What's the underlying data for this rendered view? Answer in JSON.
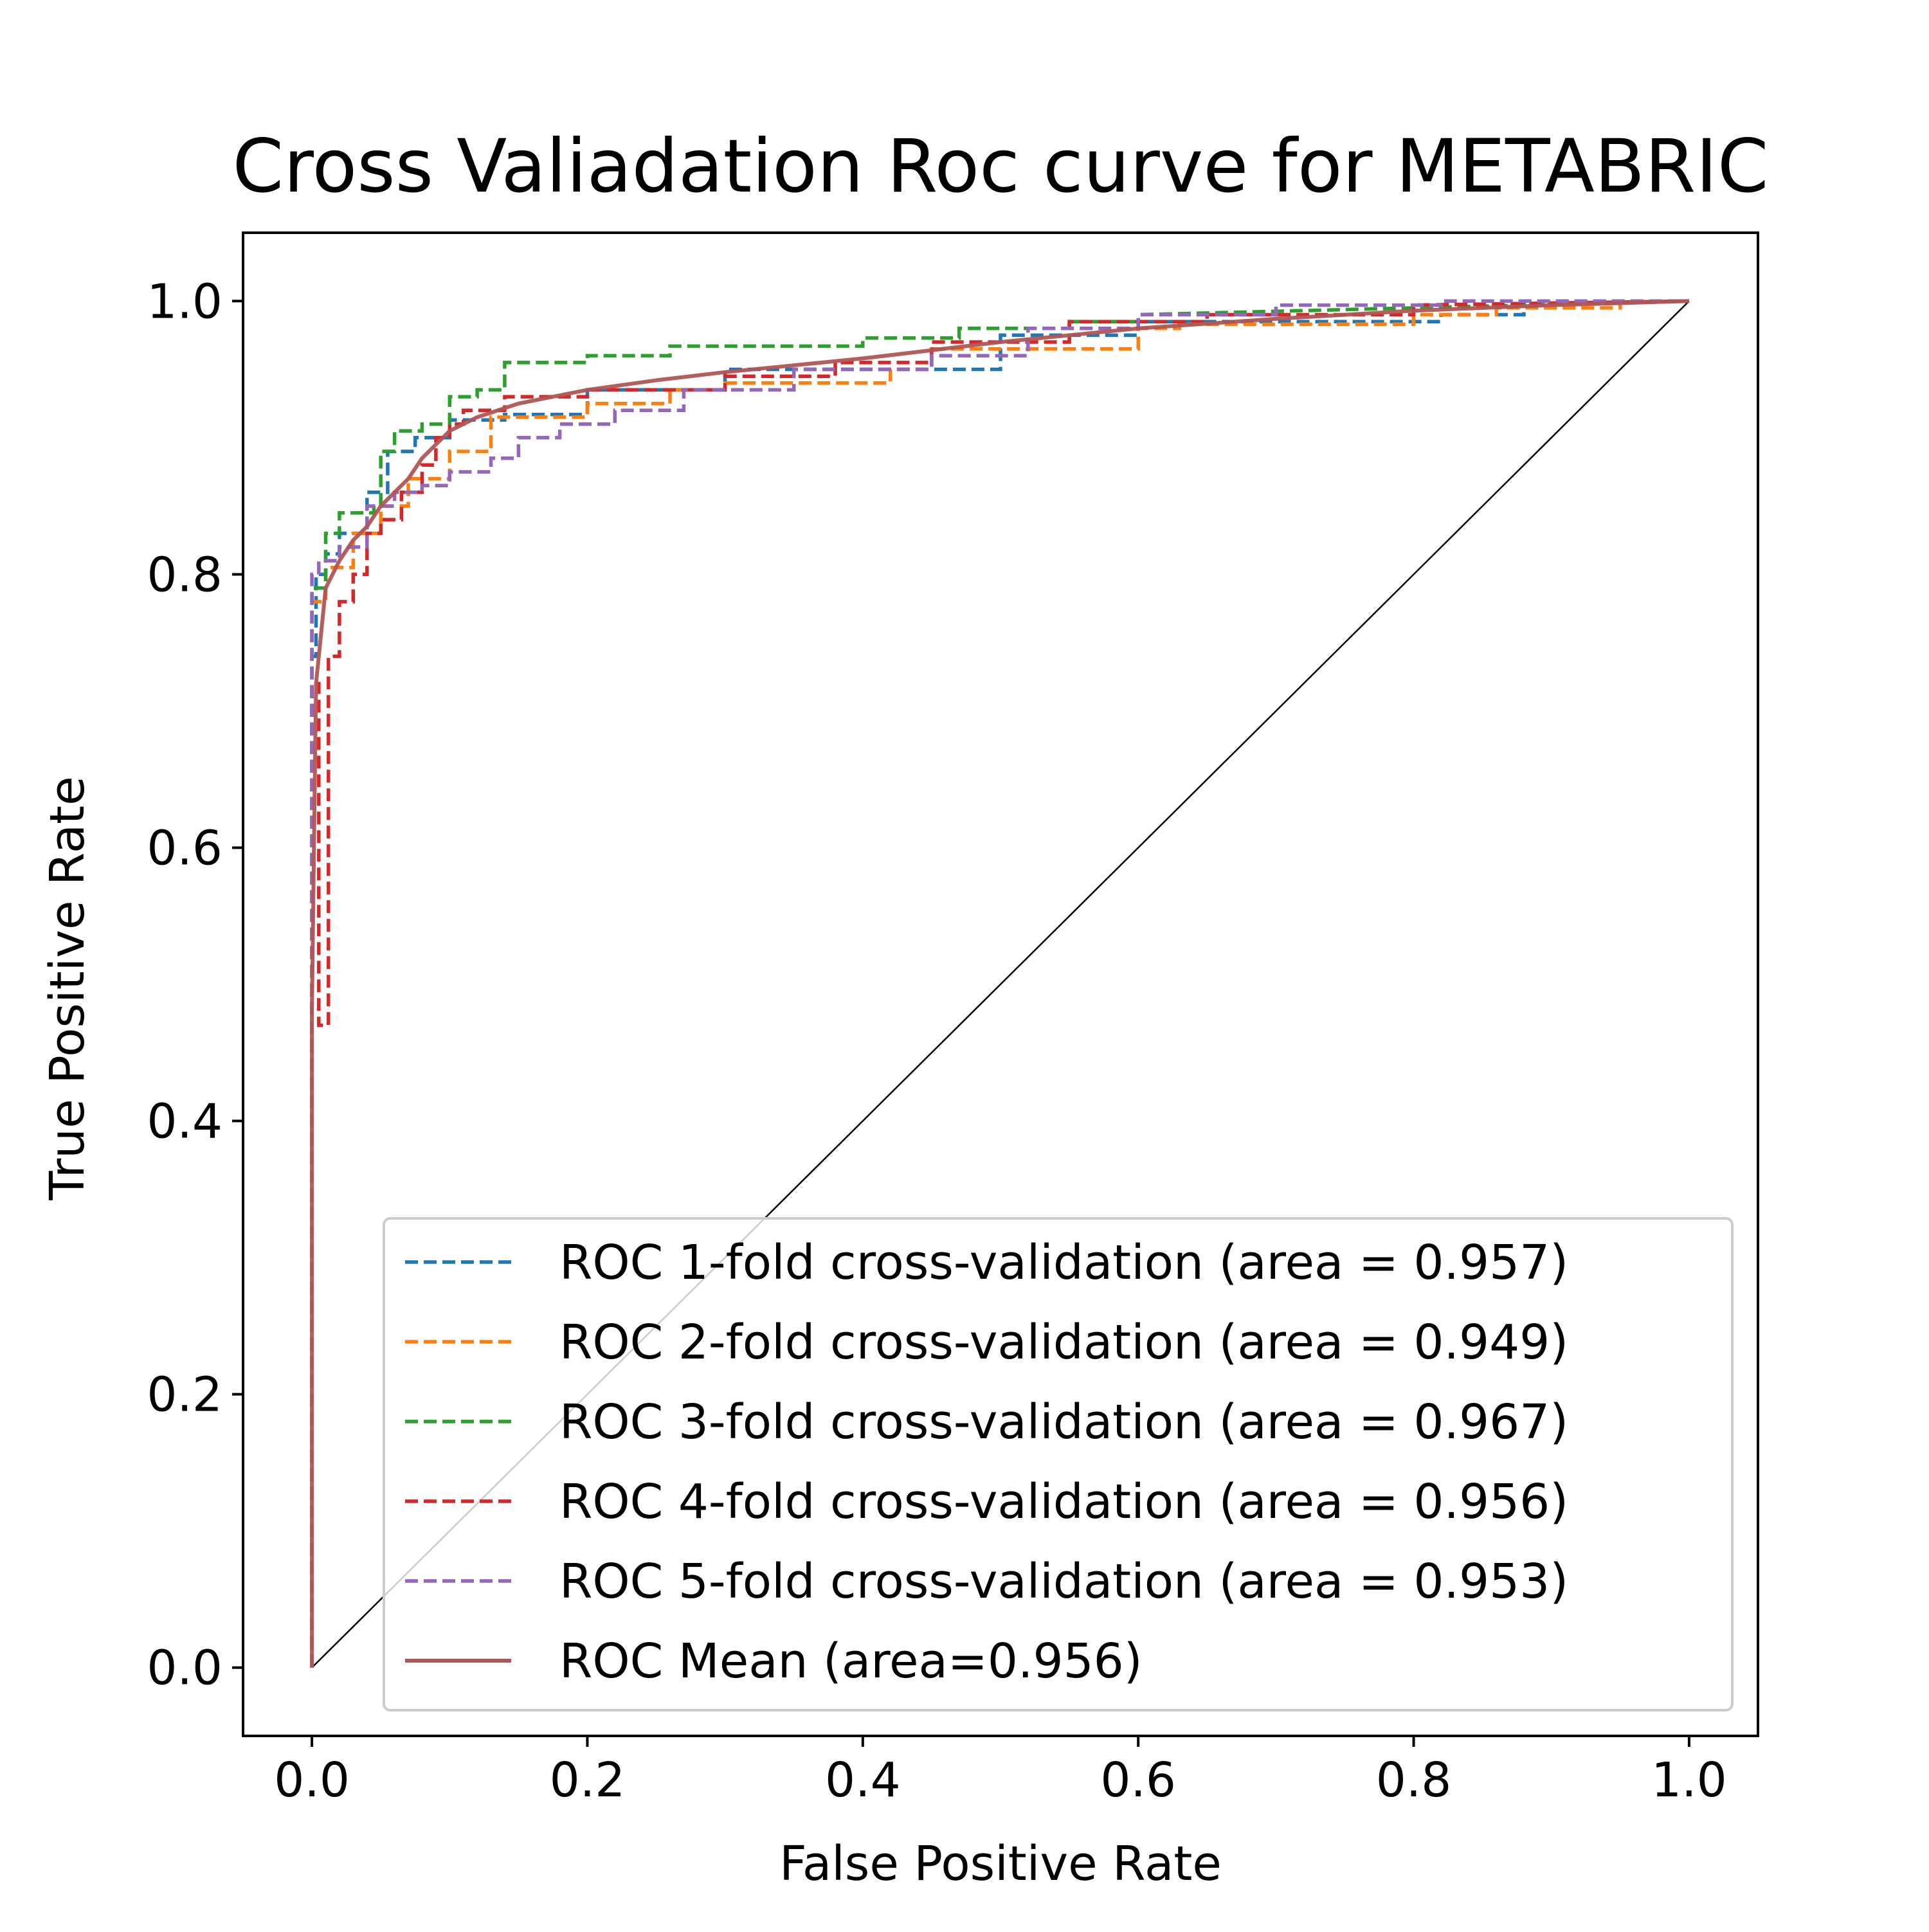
{
  "chart_data": {
    "type": "line",
    "title": "Cross Valiadation Roc curve for METABRIC",
    "xlabel": "False Positive Rate",
    "ylabel": "True Positive Rate",
    "xlim": [
      -0.05,
      1.05
    ],
    "ylim": [
      -0.05,
      1.05
    ],
    "xticks": [
      0.0,
      0.2,
      0.4,
      0.6,
      0.8,
      1.0
    ],
    "yticks": [
      0.0,
      0.2,
      0.4,
      0.6,
      0.8,
      1.0
    ],
    "xtick_labels": [
      "0.0",
      "0.2",
      "0.4",
      "0.6",
      "0.8",
      "1.0"
    ],
    "ytick_labels": [
      "0.0",
      "0.2",
      "0.4",
      "0.6",
      "0.8",
      "1.0"
    ],
    "grid": false,
    "legend_position": "lower-right",
    "diagonal": {
      "x": [
        0,
        1
      ],
      "y": [
        0,
        1
      ],
      "color": "#000000"
    },
    "series": [
      {
        "name": "ROC 1-fold cross-validation (area = 0.957)",
        "color": "#1f77b4",
        "style": "dashed",
        "x": [
          0,
          0,
          0.003,
          0.003,
          0.01,
          0.01,
          0.02,
          0.02,
          0.04,
          0.04,
          0.055,
          0.055,
          0.075,
          0.075,
          0.1,
          0.1,
          0.14,
          0.14,
          0.2,
          0.2,
          0.3,
          0.3,
          0.5,
          0.5,
          0.6,
          0.6,
          0.82,
          0.82,
          0.88,
          0.88,
          1.0
        ],
        "y": [
          0,
          0.74,
          0.74,
          0.8,
          0.8,
          0.815,
          0.815,
          0.83,
          0.83,
          0.86,
          0.86,
          0.89,
          0.89,
          0.9,
          0.9,
          0.913,
          0.913,
          0.917,
          0.917,
          0.935,
          0.935,
          0.95,
          0.95,
          0.975,
          0.975,
          0.985,
          0.985,
          0.99,
          0.99,
          1.0,
          1.0
        ]
      },
      {
        "name": "ROC 2-fold cross-validation (area = 0.949)",
        "color": "#ff7f0e",
        "style": "dashed",
        "x": [
          0,
          0,
          0.01,
          0.01,
          0.03,
          0.03,
          0.05,
          0.05,
          0.07,
          0.07,
          0.1,
          0.1,
          0.13,
          0.13,
          0.2,
          0.2,
          0.26,
          0.26,
          0.3,
          0.3,
          0.42,
          0.42,
          0.45,
          0.45,
          0.6,
          0.6,
          0.63,
          0.63,
          0.8,
          0.8,
          0.86,
          0.86,
          0.95,
          0.95,
          1.0
        ],
        "y": [
          0,
          0.78,
          0.78,
          0.805,
          0.805,
          0.83,
          0.83,
          0.85,
          0.85,
          0.87,
          0.87,
          0.89,
          0.89,
          0.915,
          0.915,
          0.925,
          0.925,
          0.935,
          0.935,
          0.94,
          0.94,
          0.95,
          0.95,
          0.965,
          0.965,
          0.98,
          0.98,
          0.983,
          0.983,
          0.99,
          0.99,
          0.995,
          0.995,
          1.0,
          1.0
        ]
      },
      {
        "name": "ROC 3-fold cross-validation (area = 0.967)",
        "color": "#2ca02c",
        "style": "dashed",
        "x": [
          0,
          0,
          0.01,
          0.01,
          0.02,
          0.02,
          0.045,
          0.045,
          0.05,
          0.05,
          0.06,
          0.06,
          0.08,
          0.08,
          0.1,
          0.1,
          0.12,
          0.12,
          0.14,
          0.14,
          0.2,
          0.2,
          0.26,
          0.26,
          0.4,
          0.4,
          0.47,
          0.47,
          0.55,
          0.55,
          0.6,
          0.6,
          1.0
        ],
        "y": [
          0,
          0.79,
          0.79,
          0.83,
          0.83,
          0.845,
          0.845,
          0.85,
          0.85,
          0.89,
          0.89,
          0.905,
          0.905,
          0.91,
          0.91,
          0.93,
          0.93,
          0.935,
          0.935,
          0.955,
          0.955,
          0.96,
          0.96,
          0.967,
          0.967,
          0.973,
          0.973,
          0.98,
          0.98,
          0.985,
          0.985,
          0.99,
          1.0
        ]
      },
      {
        "name": "ROC 4-fold cross-validation (area = 0.956)",
        "color": "#d62728",
        "style": "dashed",
        "x": [
          0,
          0,
          0.005,
          0.005,
          0.012,
          0.012,
          0.02,
          0.02,
          0.03,
          0.03,
          0.04,
          0.04,
          0.05,
          0.05,
          0.065,
          0.065,
          0.08,
          0.08,
          0.09,
          0.09,
          0.1,
          0.1,
          0.11,
          0.11,
          0.14,
          0.14,
          0.2,
          0.2,
          0.3,
          0.3,
          0.38,
          0.38,
          0.45,
          0.45,
          0.55,
          0.55,
          0.65,
          0.65,
          0.8,
          0.8,
          1.0
        ],
        "y": [
          0,
          0.72,
          0.72,
          0.47,
          0.47,
          0.74,
          0.74,
          0.78,
          0.78,
          0.8,
          0.8,
          0.83,
          0.83,
          0.84,
          0.84,
          0.86,
          0.86,
          0.88,
          0.88,
          0.9,
          0.9,
          0.91,
          0.91,
          0.92,
          0.92,
          0.93,
          0.93,
          0.935,
          0.935,
          0.945,
          0.945,
          0.955,
          0.955,
          0.97,
          0.97,
          0.985,
          0.985,
          0.99,
          0.99,
          0.997,
          1.0
        ]
      },
      {
        "name": "ROC 5-fold cross-validation (area = 0.953)",
        "color": "#9467bd",
        "style": "dashed",
        "x": [
          0,
          0,
          0.005,
          0.005,
          0.02,
          0.02,
          0.04,
          0.04,
          0.06,
          0.06,
          0.08,
          0.08,
          0.1,
          0.1,
          0.13,
          0.13,
          0.15,
          0.15,
          0.18,
          0.18,
          0.22,
          0.22,
          0.27,
          0.27,
          0.35,
          0.35,
          0.45,
          0.45,
          0.52,
          0.52,
          0.6,
          0.6,
          0.7,
          0.7,
          0.82,
          0.82,
          1.0
        ],
        "y": [
          0,
          0.8,
          0.8,
          0.81,
          0.81,
          0.82,
          0.82,
          0.85,
          0.85,
          0.86,
          0.86,
          0.865,
          0.865,
          0.875,
          0.875,
          0.885,
          0.885,
          0.9,
          0.9,
          0.91,
          0.91,
          0.92,
          0.92,
          0.935,
          0.935,
          0.95,
          0.95,
          0.96,
          0.96,
          0.98,
          0.98,
          0.99,
          0.99,
          0.997,
          0.997,
          1.0,
          1.0
        ]
      },
      {
        "name": "ROC Mean (area=0.956)",
        "color": "#b05555",
        "style": "solid",
        "x": [
          0,
          0.0,
          0.003,
          0.01,
          0.02,
          0.03,
          0.04,
          0.05,
          0.06,
          0.07,
          0.08,
          0.09,
          0.1,
          0.12,
          0.15,
          0.2,
          0.25,
          0.3,
          0.35,
          0.4,
          0.5,
          0.6,
          0.7,
          0.8,
          0.9,
          1.0
        ],
        "y": [
          0,
          0.48,
          0.72,
          0.79,
          0.81,
          0.825,
          0.835,
          0.85,
          0.86,
          0.87,
          0.885,
          0.895,
          0.905,
          0.915,
          0.925,
          0.935,
          0.942,
          0.948,
          0.953,
          0.958,
          0.97,
          0.98,
          0.987,
          0.993,
          0.997,
          1.0
        ]
      }
    ]
  }
}
